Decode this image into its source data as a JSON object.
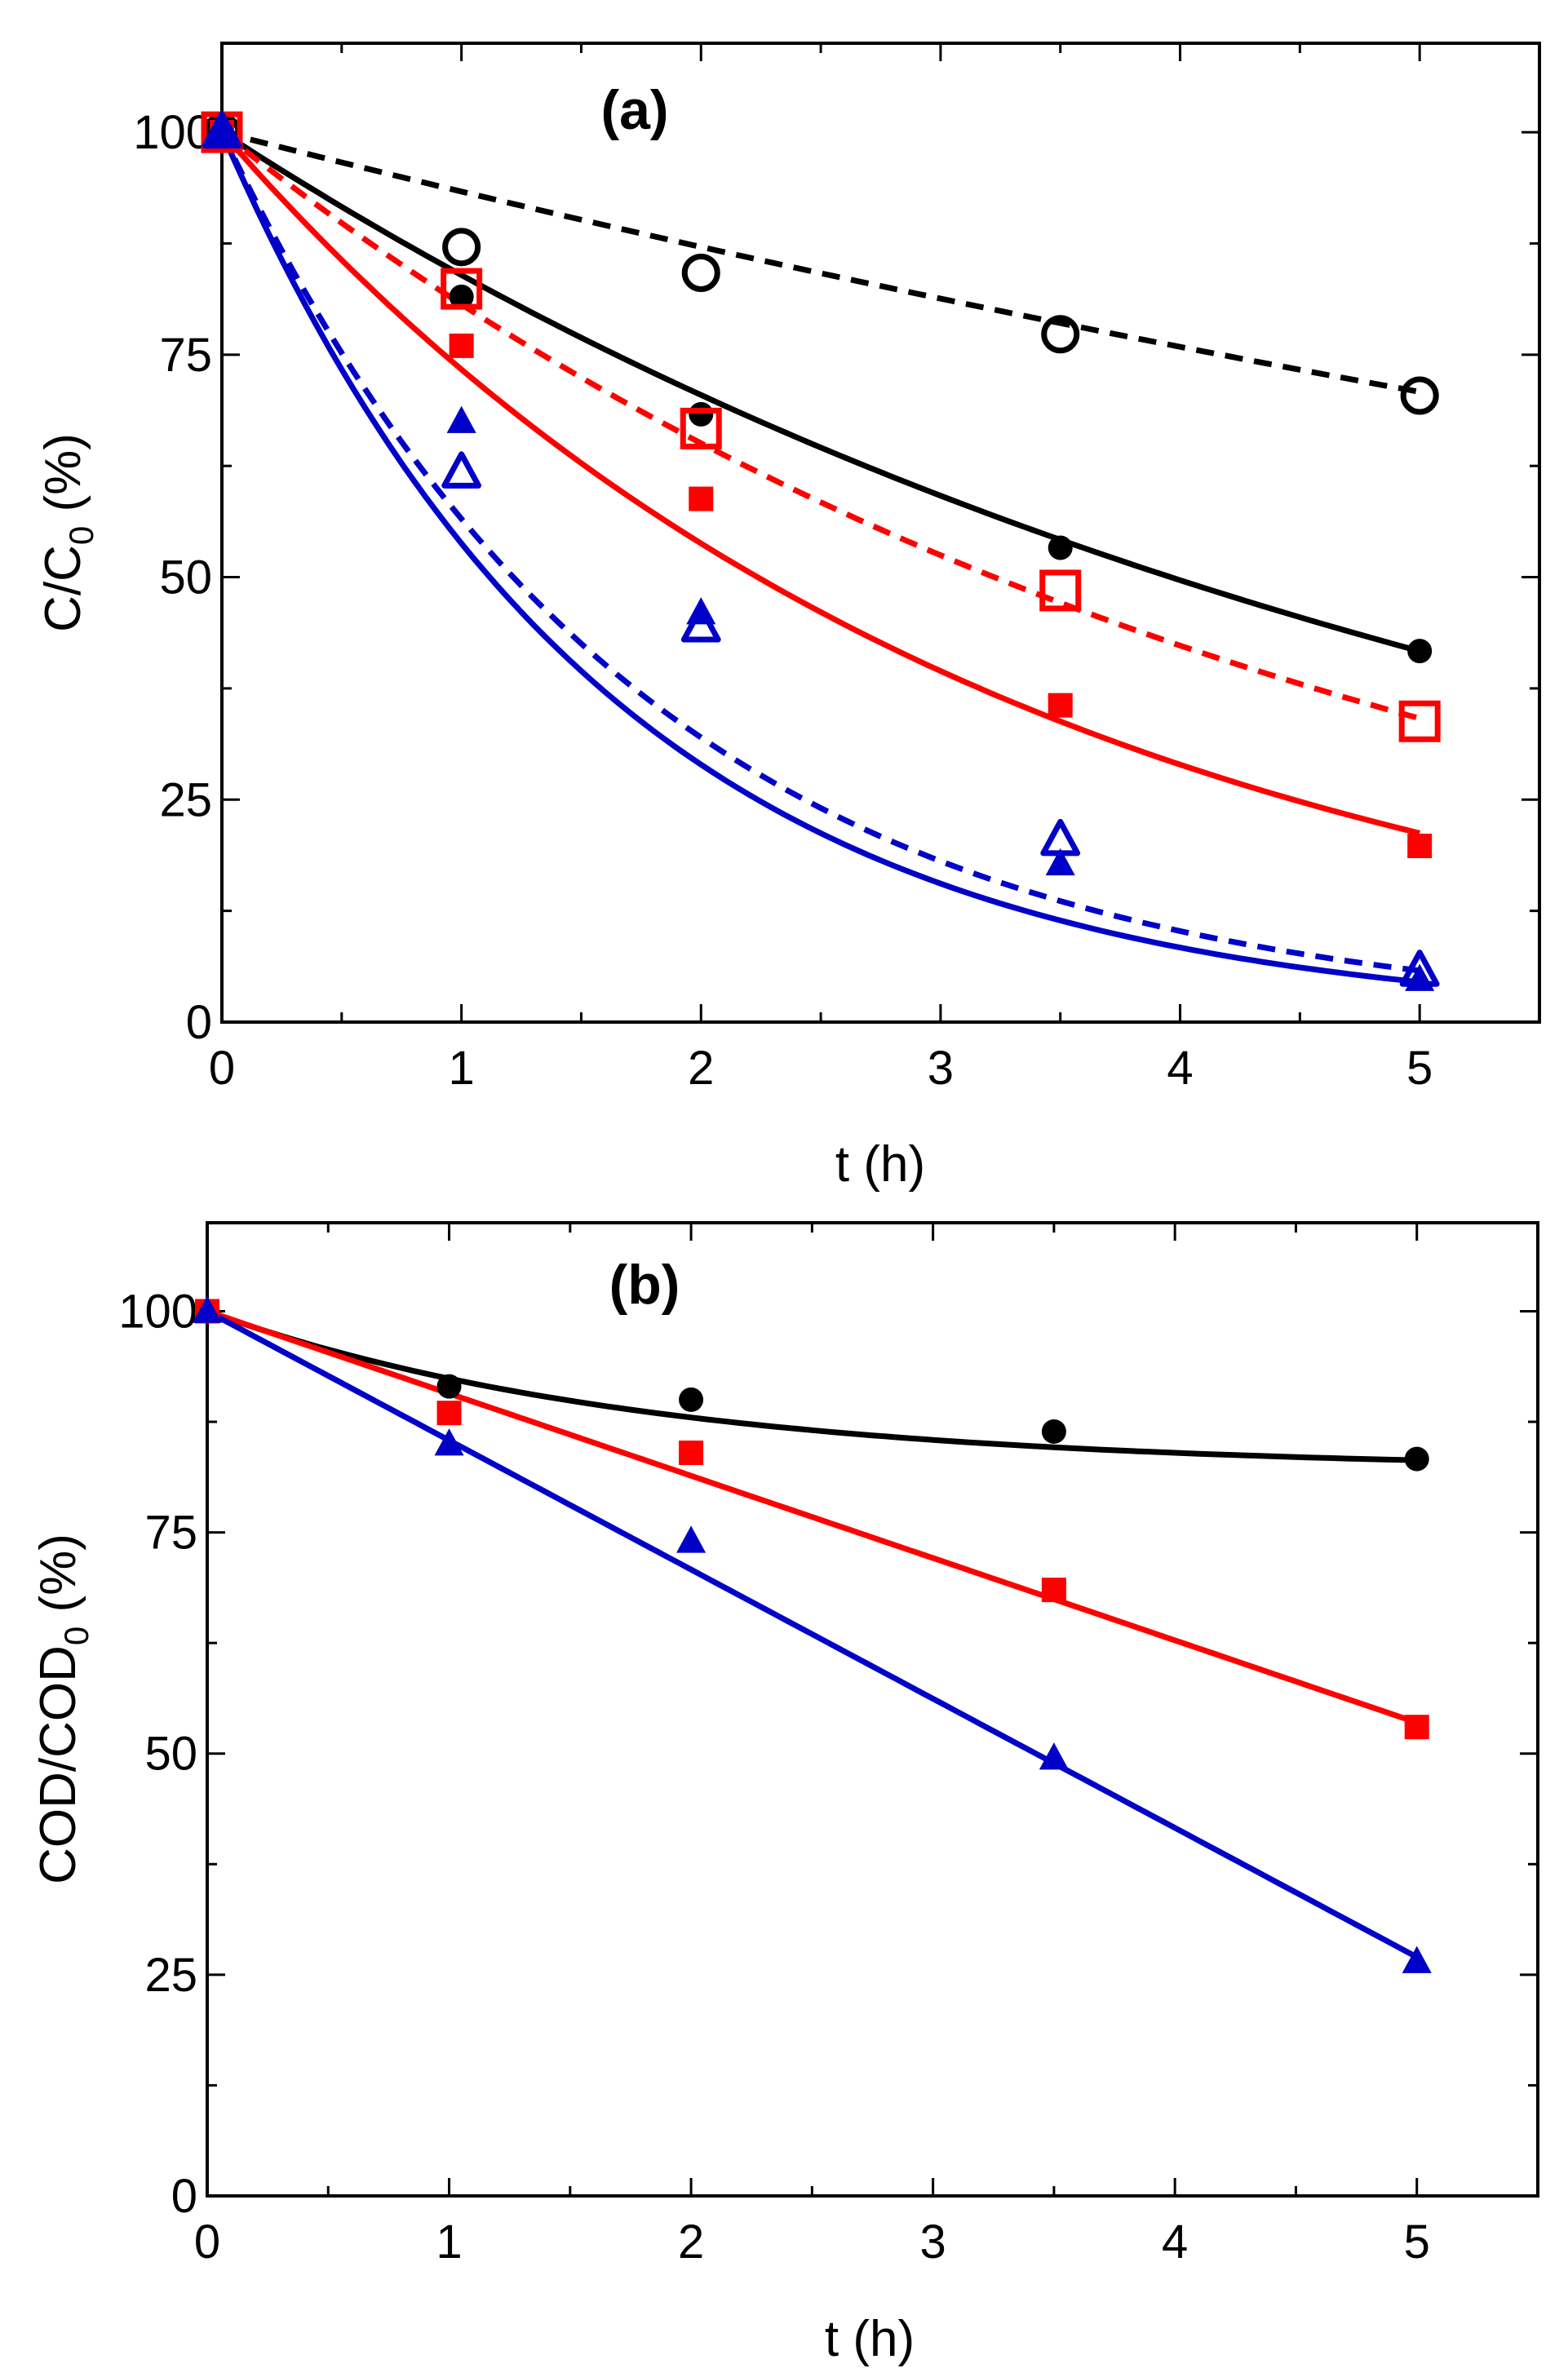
{
  "chart_data": [
    {
      "type": "line",
      "panel_label": "(a)",
      "xlabel": "t (h)",
      "ylabel_main": "C/C",
      "ylabel_sub": "0",
      "ylabel_suffix": " (%)",
      "xlim": [
        0,
        5.5
      ],
      "ylim": [
        0,
        110
      ],
      "xticks": [
        0,
        1,
        2,
        3,
        4,
        5
      ],
      "yticks": [
        0,
        25,
        50,
        75,
        100
      ],
      "x_tick_labels": [
        "0",
        "1",
        "2",
        "3",
        "4",
        "5"
      ],
      "y_tick_labels": [
        "0",
        "25",
        "50",
        "75",
        "100"
      ],
      "grid": false,
      "series": [
        {
          "name": "black filled circles",
          "color": "#000000",
          "marker": "circle",
          "filled": true,
          "dashed": false,
          "x": [
            0,
            1,
            2,
            3.5,
            5
          ],
          "values": [
            100,
            81.5,
            68.3,
            53.3,
            41.7
          ],
          "fit_k": 0.175,
          "fit_type": "exp"
        },
        {
          "name": "black open circles",
          "color": "#000000",
          "marker": "circle",
          "filled": false,
          "dashed": true,
          "x": [
            0,
            1,
            2,
            3.5,
            5
          ],
          "values": [
            100,
            87.1,
            84.2,
            77.3,
            70.4
          ],
          "fit_k": 0.069,
          "fit_type": "exp"
        },
        {
          "name": "red filled squares",
          "color": "#ff0000",
          "marker": "square",
          "filled": true,
          "dashed": false,
          "x": [
            0,
            1,
            2,
            3.5,
            5
          ],
          "values": [
            100,
            76.0,
            58.8,
            35.6,
            19.8
          ],
          "fit_k": 0.31,
          "fit_type": "exp"
        },
        {
          "name": "red open squares",
          "color": "#ff0000",
          "marker": "square",
          "filled": false,
          "dashed": true,
          "x": [
            0,
            1,
            2,
            3.5,
            5
          ],
          "values": [
            100,
            82.4,
            66.7,
            48.5,
            33.8
          ],
          "fit_k": 0.215,
          "fit_type": "exp"
        },
        {
          "name": "blue filled triangles",
          "color": "#0000c8",
          "marker": "triangle",
          "filled": true,
          "dashed": false,
          "x": [
            0,
            1,
            2,
            3.5,
            5
          ],
          "values": [
            100,
            67.5,
            46.0,
            17.8,
            4.8
          ],
          "fit_k": 0.62,
          "fit_type": "exp"
        },
        {
          "name": "blue open triangles",
          "color": "#0000c8",
          "marker": "triangle",
          "filled": false,
          "dashed": true,
          "x": [
            0,
            1,
            2,
            3.5,
            5
          ],
          "values": [
            100,
            61.8,
            44.5,
            20.5,
            5.8
          ],
          "fit_k": 0.57,
          "fit_type": "exp"
        }
      ]
    },
    {
      "type": "line",
      "panel_label": "(b)",
      "xlabel": "t (h)",
      "ylabel_main": "COD/COD",
      "ylabel_sub": "0",
      "ylabel_suffix": " (%)",
      "xlim": [
        0,
        5.5
      ],
      "ylim": [
        0,
        110
      ],
      "xticks": [
        0,
        1,
        2,
        3,
        4,
        5
      ],
      "yticks": [
        0,
        25,
        50,
        75,
        100
      ],
      "x_tick_labels": [
        "0",
        "1",
        "2",
        "3",
        "4",
        "5"
      ],
      "y_tick_labels": [
        "0",
        "25",
        "50",
        "75",
        "100"
      ],
      "grid": false,
      "series": [
        {
          "name": "black filled circles",
          "color": "#000000",
          "marker": "circle",
          "filled": true,
          "dashed": false,
          "x": [
            0,
            1,
            2,
            3.5,
            5
          ],
          "values": [
            100,
            91.5,
            90.0,
            86.4,
            83.3
          ],
          "fit_type": "plateau",
          "fit_plateau": 82,
          "fit_rate": 0.55
        },
        {
          "name": "red filled squares",
          "color": "#ff0000",
          "marker": "square",
          "filled": true,
          "dashed": false,
          "x": [
            0,
            1,
            2,
            3.5,
            5
          ],
          "values": [
            100,
            88.5,
            84.0,
            68.5,
            53.0
          ],
          "fit_type": "linear",
          "fit_slope": -9.3
        },
        {
          "name": "blue filled triangles",
          "color": "#0000c8",
          "marker": "triangle",
          "filled": true,
          "dashed": false,
          "x": [
            0,
            1,
            2,
            3.5,
            5
          ],
          "values": [
            100,
            85.0,
            74.0,
            49.5,
            26.5
          ],
          "fit_type": "linear",
          "fit_slope": -14.6
        }
      ]
    }
  ]
}
